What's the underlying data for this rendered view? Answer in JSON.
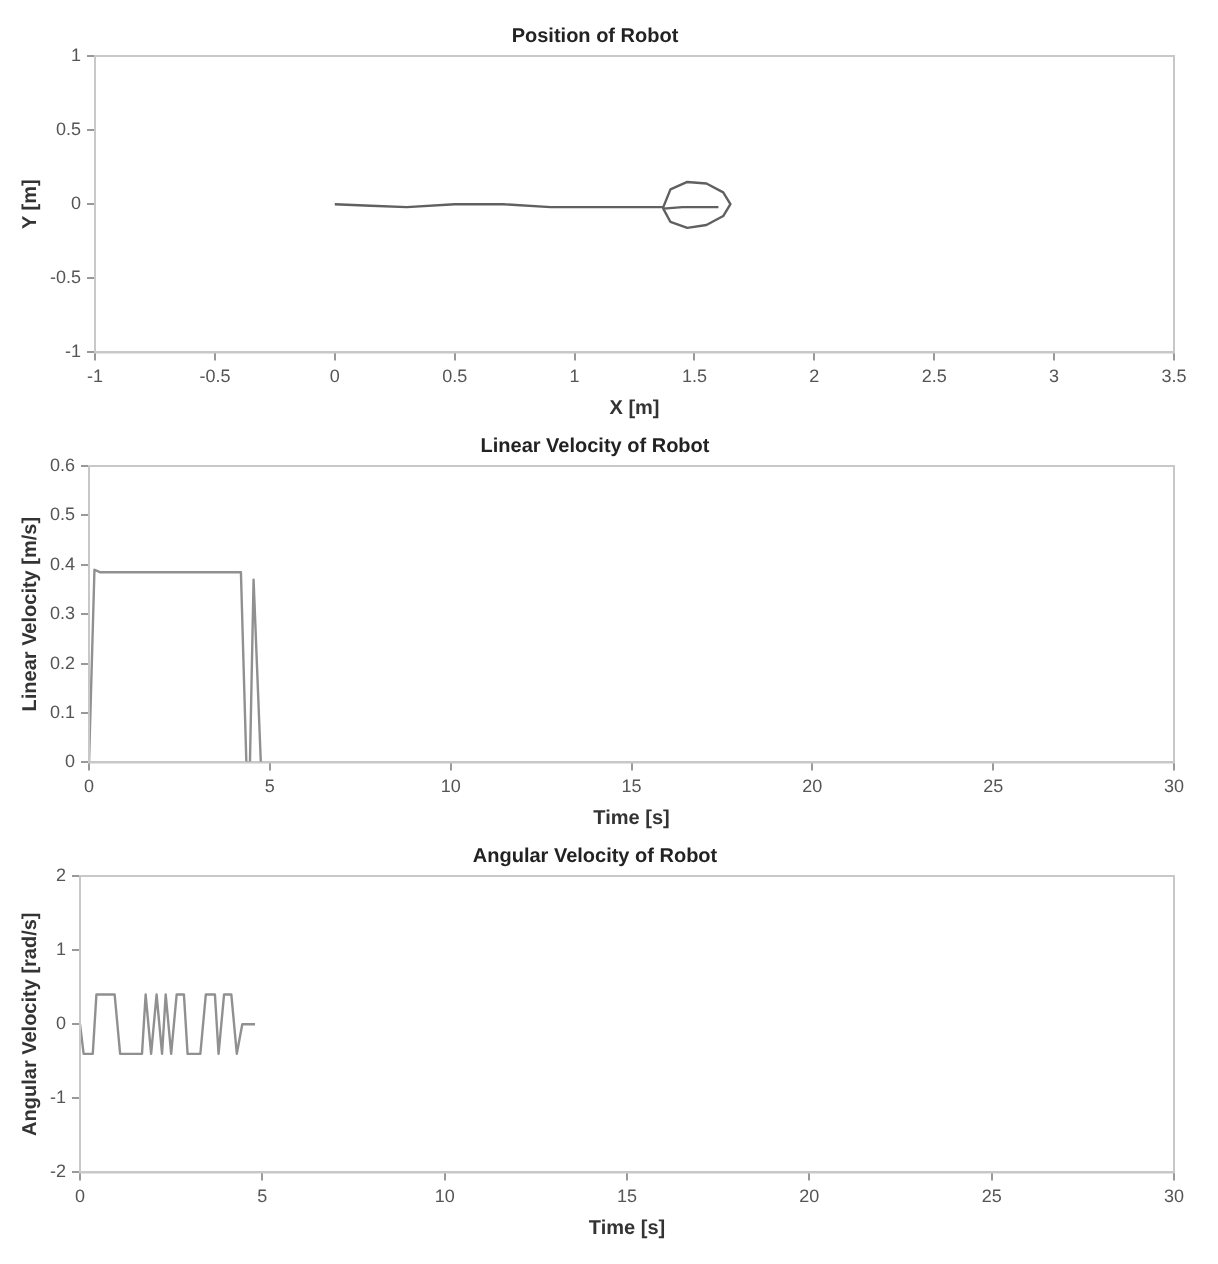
{
  "chart_data": [
    {
      "type": "line",
      "title": "Position of Robot",
      "xlabel": "X [m]",
      "ylabel": "Y [m]",
      "xlim": [
        -1,
        3.5
      ],
      "xticks": [
        -1,
        -0.5,
        0,
        0.5,
        1,
        1.5,
        2,
        2.5,
        3,
        3.5
      ],
      "ylim": [
        -1,
        1
      ],
      "yticks": [
        -1,
        -0.5,
        0,
        0.5,
        1
      ],
      "grid": false,
      "legend": false,
      "marker": "none",
      "line_style": "solid",
      "series": [
        {
          "color": "#606060",
          "x": [
            0,
            0.15,
            0.3,
            0.5,
            0.7,
            0.9,
            1.1,
            1.37,
            1.4,
            1.47,
            1.55,
            1.62,
            1.65,
            1.62,
            1.55,
            1.47,
            1.4,
            1.37,
            1.45,
            1.6
          ],
          "values": [
            0,
            -0.01,
            -0.02,
            0,
            0,
            -0.02,
            -0.02,
            -0.02,
            0.1,
            0.15,
            0.14,
            0.08,
            0,
            -0.08,
            -0.14,
            -0.16,
            -0.12,
            -0.03,
            -0.02,
            -0.02
          ]
        }
      ]
    },
    {
      "type": "line",
      "title": "Linear Velocity of Robot",
      "xlabel": "Time [s]",
      "ylabel": "Linear Velocity [m/s]",
      "xlim": [
        0,
        30
      ],
      "xticks": [
        0,
        5,
        10,
        15,
        20,
        25,
        30
      ],
      "ylim": [
        0,
        0.6
      ],
      "yticks": [
        0,
        0.1,
        0.2,
        0.3,
        0.4,
        0.5,
        0.6
      ],
      "grid": false,
      "legend": false,
      "marker": "none",
      "line_style": "solid",
      "series": [
        {
          "color": "#909090",
          "x": [
            0,
            0.15,
            0.3,
            4.0,
            4.2,
            4.35,
            4.45,
            4.55,
            4.75,
            4.8
          ],
          "values": [
            0,
            0.39,
            0.385,
            0.385,
            0.385,
            0,
            0,
            0.37,
            0,
            0
          ]
        }
      ]
    },
    {
      "type": "line",
      "title": "Angular Velocity of Robot",
      "xlabel": "Time [s]",
      "ylabel": "Angular Velocity [rad/s]",
      "xlim": [
        0,
        30
      ],
      "xticks": [
        0,
        5,
        10,
        15,
        20,
        25,
        30
      ],
      "ylim": [
        -2,
        2
      ],
      "yticks": [
        -2,
        -1,
        0,
        1,
        2
      ],
      "grid": false,
      "legend": false,
      "marker": "none",
      "line_style": "solid",
      "series": [
        {
          "color": "#909090",
          "x": [
            0,
            0.1,
            0.35,
            0.45,
            0.95,
            1.1,
            1.7,
            1.8,
            1.95,
            2.1,
            2.25,
            2.35,
            2.5,
            2.65,
            2.85,
            2.95,
            3.3,
            3.45,
            3.7,
            3.8,
            3.95,
            4.15,
            4.3,
            4.45,
            4.8
          ],
          "values": [
            0,
            -0.4,
            -0.4,
            0.4,
            0.4,
            -0.4,
            -0.4,
            0.4,
            -0.4,
            0.4,
            -0.4,
            0.4,
            -0.4,
            0.4,
            0.4,
            -0.4,
            -0.4,
            0.4,
            0.4,
            -0.4,
            0.4,
            0.4,
            -0.4,
            0,
            0
          ]
        }
      ]
    }
  ]
}
